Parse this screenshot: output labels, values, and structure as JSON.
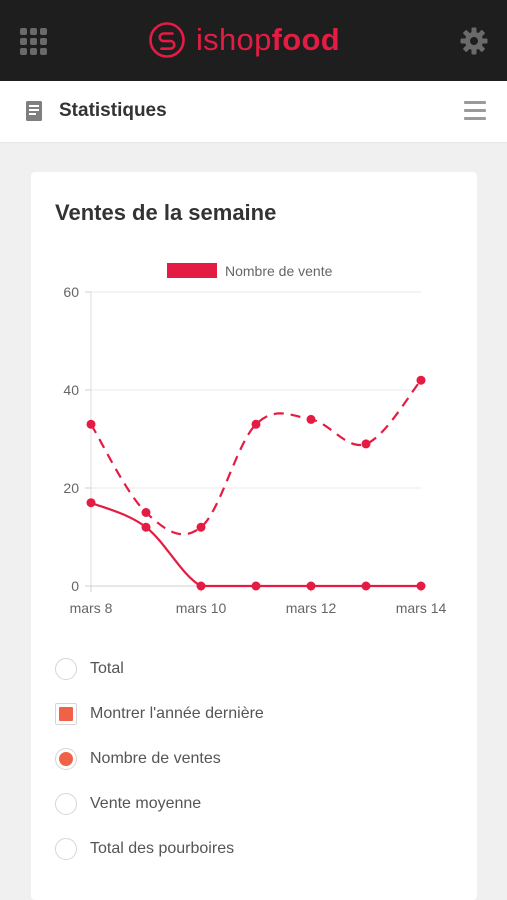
{
  "topbar": {
    "brand_light": "ishop",
    "brand_bold": "food",
    "brand_color": "#e41c44",
    "left_icon": "grid-icon",
    "right_icon": "gear-icon"
  },
  "subheader": {
    "title": "Statistiques",
    "left_icon": "document-icon",
    "right_icon": "menu-icon"
  },
  "card": {
    "title": "Ventes de la semaine"
  },
  "chart_data": {
    "type": "line",
    "legend": {
      "label": "Nombre de vente",
      "position": "top",
      "color": "#e41c44"
    },
    "x_ticks": [
      "mars 8",
      "mars 10",
      "mars 12",
      "mars 14"
    ],
    "y_ticks": [
      "60",
      "40",
      "20",
      "0"
    ],
    "ylim": [
      0,
      60
    ],
    "grid": true,
    "x": [
      "mars 8",
      "mars 9",
      "mars 10",
      "mars 11",
      "mars 12",
      "mars 13",
      "mars 14"
    ],
    "series": [
      {
        "style": "solid",
        "color": "#e41c44",
        "values": [
          17,
          12,
          0,
          0,
          0,
          0,
          0
        ]
      },
      {
        "style": "dashed",
        "color": "#e41c44",
        "values": [
          33,
          15,
          12,
          33,
          34,
          29,
          42
        ]
      }
    ]
  },
  "options": [
    {
      "label": "Total",
      "kind": "radio",
      "selected": false
    },
    {
      "label": "Montrer l'année dernière",
      "kind": "checkbox",
      "selected": true
    },
    {
      "label": "Nombre de ventes",
      "kind": "radio",
      "selected": true
    },
    {
      "label": "Vente moyenne",
      "kind": "radio",
      "selected": false
    },
    {
      "label": "Total des pourboires",
      "kind": "radio",
      "selected": false
    }
  ],
  "colors": {
    "accent": "#e41c44",
    "option_fill": "#f06248",
    "header_bg": "#1e1e1e"
  }
}
